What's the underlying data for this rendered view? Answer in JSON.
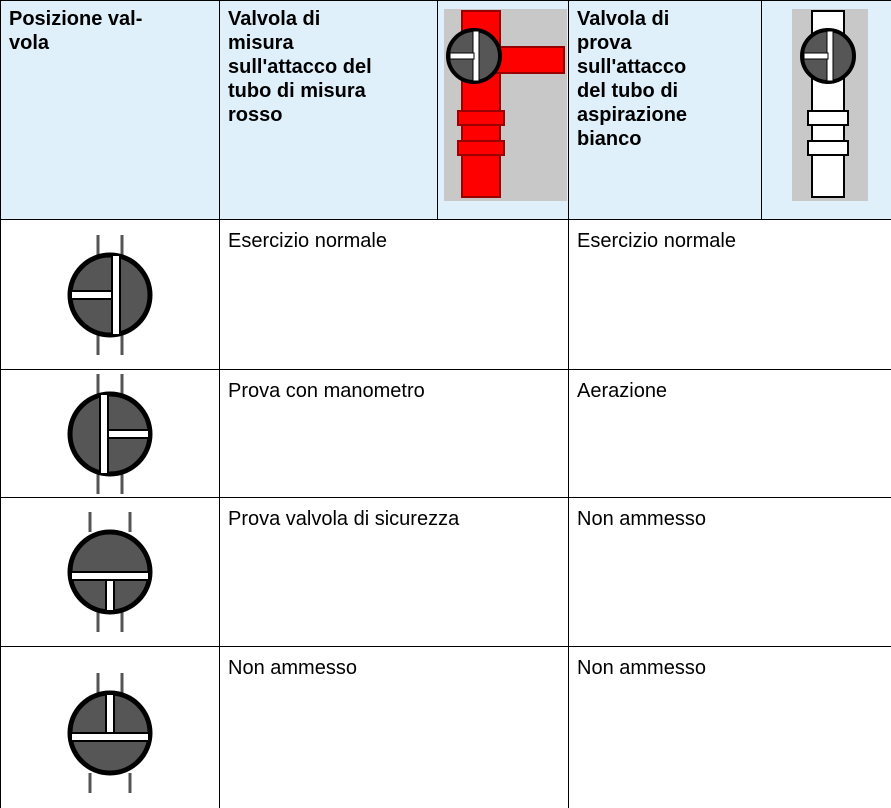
{
  "header": {
    "position": "Posizione val-\nvola",
    "measuring_valve": "Valvola di\nmisura\nsull'attacco del\ntubo di misura\nrosso",
    "test_valve": "Valvola di\nprova\nsull'attacco\ndel tubo di\naspirazione\nbianco"
  },
  "table": {
    "rows": [
      [
        "Esercizio normale",
        "Esercizio normale"
      ],
      [
        "Prova con manometro",
        "Aerazione"
      ],
      [
        "Prova valvola di sicurezza",
        "Non ammesso"
      ],
      [
        "Non ammesso",
        "Non ammesso"
      ]
    ]
  }
}
